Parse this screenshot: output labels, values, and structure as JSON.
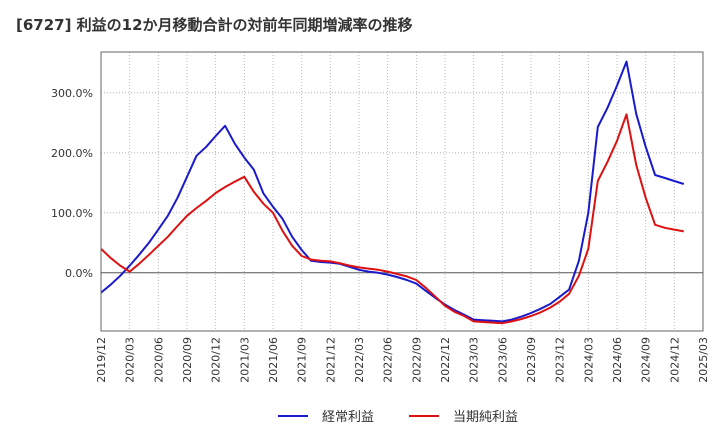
{
  "chart_data": {
    "type": "line",
    "title": "[6727]  利益の12か月移動合計の対前年同期増減率の推移",
    "xlabel": "",
    "ylabel": "",
    "ylim": [
      -97,
      368
    ],
    "yticks": [
      {
        "value": 0,
        "label": "0.0%"
      },
      {
        "value": 100,
        "label": "100.0%"
      },
      {
        "value": 200,
        "label": "200.0%"
      },
      {
        "value": 300,
        "label": "300.0%"
      }
    ],
    "x_ticks": [
      "2019/12",
      "2020/03",
      "2020/06",
      "2020/09",
      "2020/12",
      "2021/03",
      "2021/06",
      "2021/09",
      "2021/12",
      "2022/03",
      "2022/06",
      "2022/09",
      "2022/12",
      "2023/03",
      "2023/06",
      "2023/09",
      "2023/12",
      "2024/03",
      "2024/06",
      "2024/09",
      "2024/12",
      "2025/03"
    ],
    "grid": true,
    "legend_position": "bottom",
    "series": [
      {
        "name": "経常利益",
        "color": "#1a1acc",
        "points": [
          [
            0,
            -33
          ],
          [
            0.33,
            -20
          ],
          [
            0.67,
            -5
          ],
          [
            1,
            12
          ],
          [
            1.33,
            30
          ],
          [
            1.67,
            50
          ],
          [
            2,
            72
          ],
          [
            2.33,
            95
          ],
          [
            2.67,
            125
          ],
          [
            3,
            160
          ],
          [
            3.33,
            195
          ],
          [
            3.67,
            210
          ],
          [
            4,
            228
          ],
          [
            4.33,
            245
          ],
          [
            4.67,
            215
          ],
          [
            5,
            192
          ],
          [
            5.33,
            172
          ],
          [
            5.67,
            132
          ],
          [
            6,
            110
          ],
          [
            6.33,
            90
          ],
          [
            6.67,
            60
          ],
          [
            7,
            38
          ],
          [
            7.33,
            20
          ],
          [
            7.67,
            18
          ],
          [
            8,
            17
          ],
          [
            8.33,
            15
          ],
          [
            8.67,
            10
          ],
          [
            9,
            5
          ],
          [
            9.33,
            2
          ],
          [
            9.67,
            0
          ],
          [
            10,
            -3
          ],
          [
            10.33,
            -7
          ],
          [
            10.67,
            -12
          ],
          [
            11,
            -18
          ],
          [
            11.33,
            -30
          ],
          [
            11.67,
            -42
          ],
          [
            12,
            -53
          ],
          [
            12.33,
            -62
          ],
          [
            12.67,
            -70
          ],
          [
            13,
            -78
          ],
          [
            13.33,
            -79
          ],
          [
            13.67,
            -80
          ],
          [
            14,
            -81
          ],
          [
            14.33,
            -78
          ],
          [
            14.67,
            -73
          ],
          [
            15,
            -67
          ],
          [
            15.33,
            -60
          ],
          [
            15.67,
            -52
          ],
          [
            16,
            -40
          ],
          [
            16.33,
            -28
          ],
          [
            16.67,
            20
          ],
          [
            17,
            100
          ],
          [
            17.33,
            243
          ],
          [
            17.67,
            275
          ],
          [
            18,
            312
          ],
          [
            18.33,
            352
          ],
          [
            18.67,
            265
          ],
          [
            19,
            210
          ],
          [
            19.33,
            163
          ],
          [
            19.67,
            158
          ],
          [
            20,
            153
          ],
          [
            20.33,
            148
          ]
        ]
      },
      {
        "name": "当期純利益",
        "color": "#dd1111",
        "points": [
          [
            0,
            40
          ],
          [
            0.33,
            25
          ],
          [
            0.67,
            12
          ],
          [
            1,
            2
          ],
          [
            1.33,
            15
          ],
          [
            1.67,
            30
          ],
          [
            2,
            45
          ],
          [
            2.33,
            60
          ],
          [
            2.67,
            78
          ],
          [
            3,
            95
          ],
          [
            3.33,
            108
          ],
          [
            3.67,
            120
          ],
          [
            4,
            133
          ],
          [
            4.33,
            143
          ],
          [
            4.67,
            152
          ],
          [
            5,
            160
          ],
          [
            5.33,
            135
          ],
          [
            5.67,
            115
          ],
          [
            6,
            100
          ],
          [
            6.33,
            70
          ],
          [
            6.67,
            45
          ],
          [
            7,
            28
          ],
          [
            7.33,
            22
          ],
          [
            7.67,
            20
          ],
          [
            8,
            19
          ],
          [
            8.33,
            16
          ],
          [
            8.67,
            12
          ],
          [
            9,
            9
          ],
          [
            9.33,
            7
          ],
          [
            9.67,
            5
          ],
          [
            10,
            2
          ],
          [
            10.33,
            -2
          ],
          [
            10.67,
            -6
          ],
          [
            11,
            -12
          ],
          [
            11.33,
            -25
          ],
          [
            11.67,
            -40
          ],
          [
            12,
            -55
          ],
          [
            12.33,
            -65
          ],
          [
            12.67,
            -72
          ],
          [
            13,
            -81
          ],
          [
            13.33,
            -82
          ],
          [
            13.67,
            -83
          ],
          [
            14,
            -84
          ],
          [
            14.33,
            -81
          ],
          [
            14.67,
            -77
          ],
          [
            15,
            -72
          ],
          [
            15.33,
            -66
          ],
          [
            15.67,
            -58
          ],
          [
            16,
            -48
          ],
          [
            16.33,
            -35
          ],
          [
            16.67,
            -5
          ],
          [
            17,
            40
          ],
          [
            17.33,
            153
          ],
          [
            17.67,
            185
          ],
          [
            18,
            220
          ],
          [
            18.33,
            264
          ],
          [
            18.67,
            180
          ],
          [
            19,
            125
          ],
          [
            19.33,
            80
          ],
          [
            19.67,
            75
          ],
          [
            20,
            72
          ],
          [
            20.33,
            69
          ]
        ]
      }
    ]
  }
}
